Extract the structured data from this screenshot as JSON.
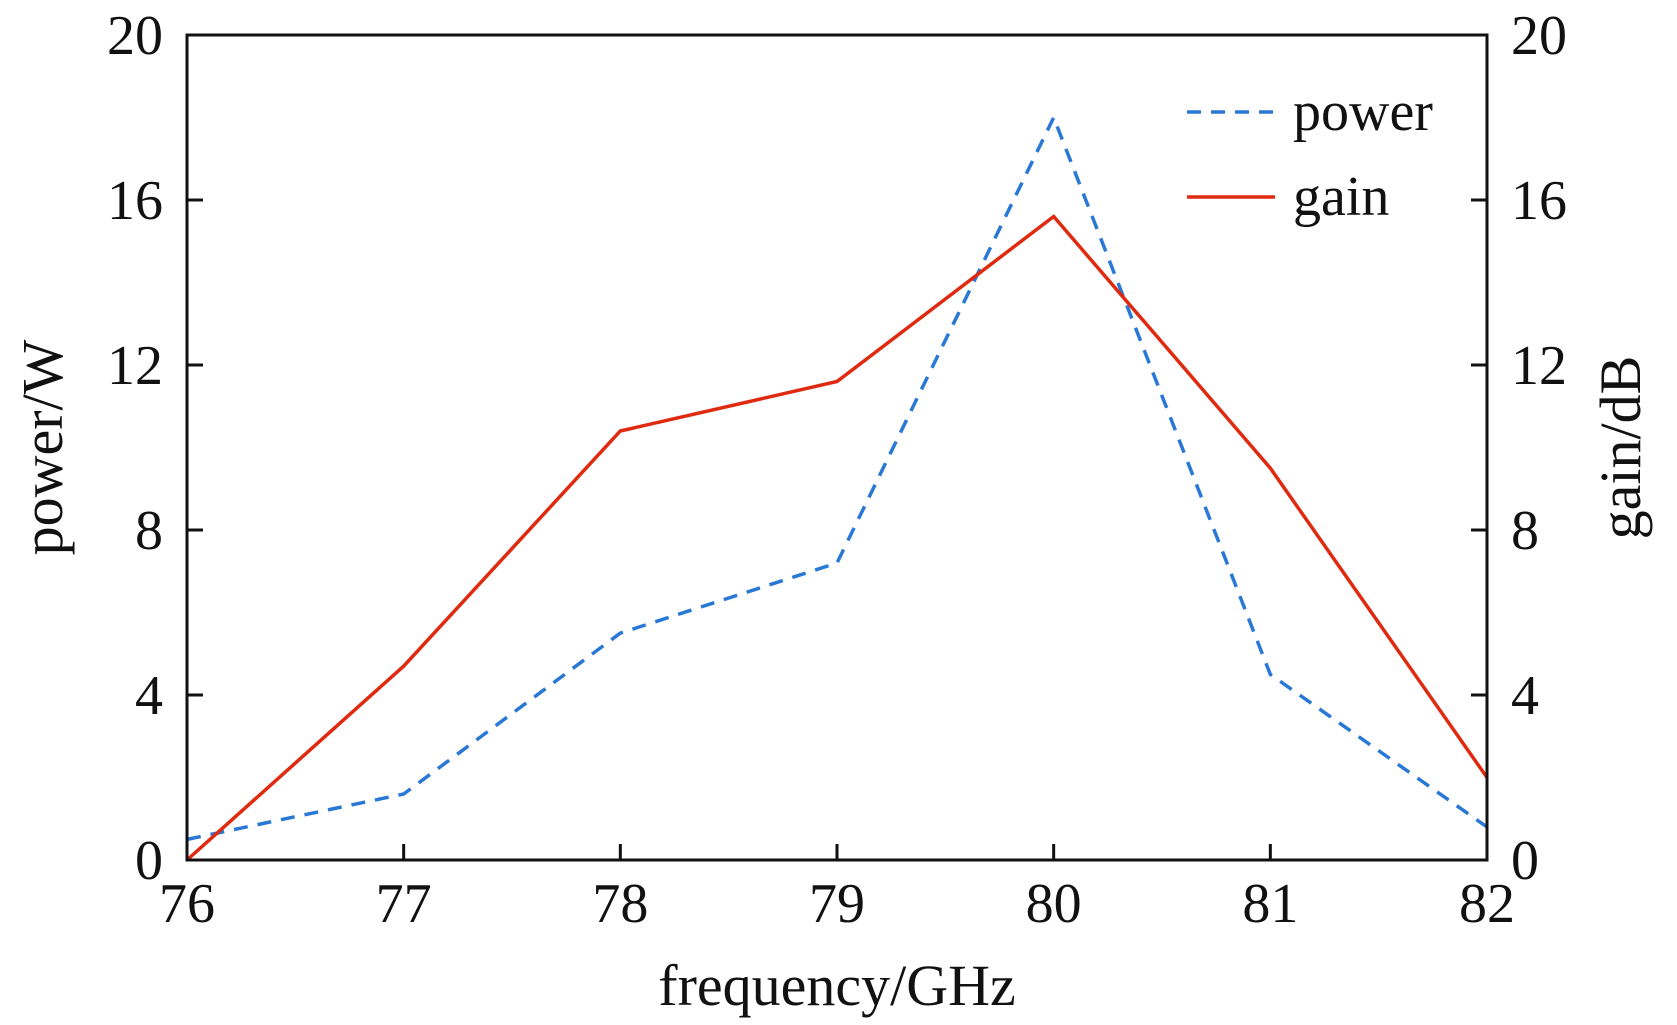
{
  "chart_data": {
    "type": "line",
    "title": "",
    "xlabel": "frequency/GHz",
    "ylabel_left": "power/W",
    "ylabel_right": "gain/dB",
    "xlim": [
      76,
      82
    ],
    "ylim_left": [
      0,
      20
    ],
    "ylim_right": [
      0,
      20
    ],
    "x_ticks": [
      "76",
      "77",
      "78",
      "79",
      "80",
      "81",
      "82"
    ],
    "y_ticks_left": [
      "0",
      "4",
      "8",
      "12",
      "16",
      "20"
    ],
    "y_ticks_right": [
      "0",
      "4",
      "8",
      "12",
      "16",
      "20"
    ],
    "grid": false,
    "legend_position": "top-right",
    "series": [
      {
        "name": "power",
        "axis": "left",
        "style": "dashed",
        "color": "#2a78d6",
        "x": [
          76,
          77,
          78,
          79,
          80,
          81,
          82
        ],
        "values": [
          0.5,
          1.6,
          5.5,
          7.2,
          18.0,
          4.5,
          0.8
        ]
      },
      {
        "name": "gain",
        "axis": "right",
        "style": "solid",
        "color": "#e02a10",
        "x": [
          76,
          77,
          78,
          79,
          80,
          81,
          82
        ],
        "values": [
          0.0,
          4.7,
          10.4,
          11.6,
          15.6,
          9.5,
          2.0
        ]
      }
    ]
  }
}
